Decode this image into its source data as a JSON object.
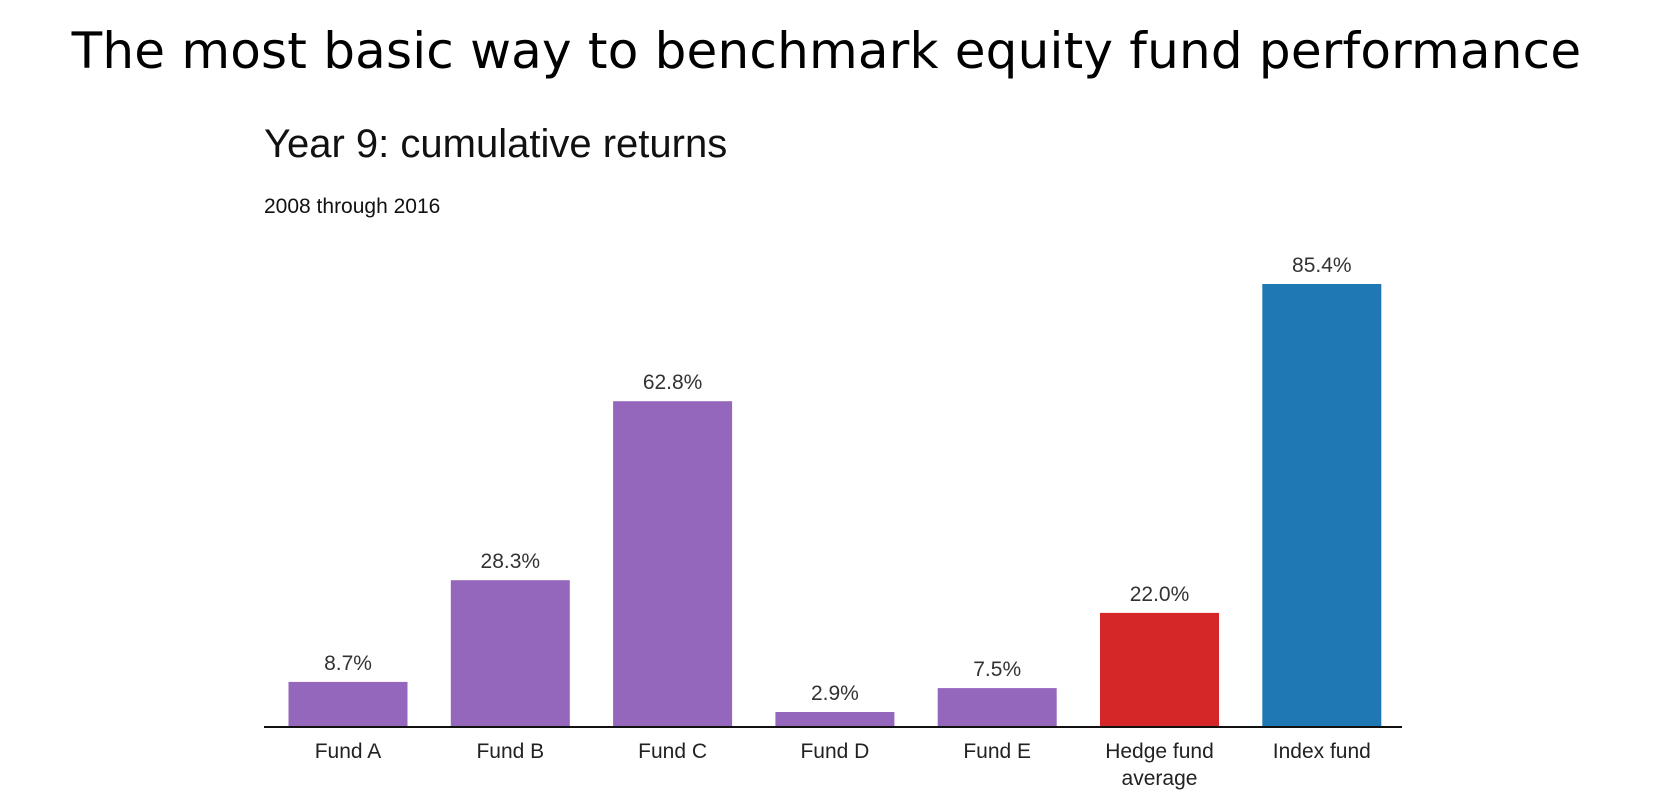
{
  "slide": {
    "title": "The most basic way to benchmark equity fund performance"
  },
  "chart_data": {
    "type": "bar",
    "title": "Year 9: cumulative returns",
    "subtitle": "2008 through 2016",
    "categories": [
      [
        "Fund A"
      ],
      [
        "Fund B"
      ],
      [
        "Fund C"
      ],
      [
        "Fund D"
      ],
      [
        "Fund E"
      ],
      [
        "Hedge fund",
        "average"
      ],
      [
        "Index fund"
      ]
    ],
    "values": [
      8.7,
      28.3,
      62.8,
      2.9,
      7.5,
      22.0,
      85.4
    ],
    "value_labels": [
      "8.7%",
      "28.3%",
      "62.8%",
      "2.9%",
      "7.5%",
      "22.0%",
      "85.4%"
    ],
    "colors": [
      "#9467bd",
      "#9467bd",
      "#9467bd",
      "#9467bd",
      "#9467bd",
      "#d62728",
      "#1f77b4"
    ],
    "ylim": [
      0,
      85.4
    ],
    "xlabel": "",
    "ylabel": "",
    "grid": false,
    "legend": "none"
  }
}
